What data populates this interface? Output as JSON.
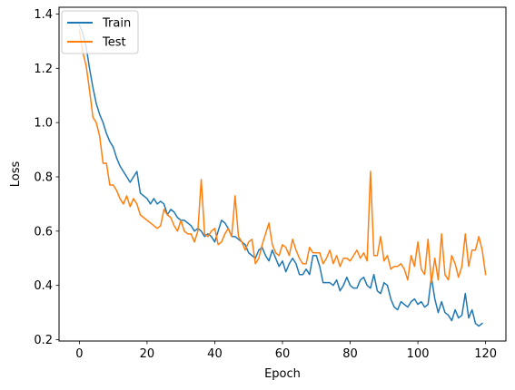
{
  "chart_data": {
    "type": "line",
    "title": "",
    "xlabel": "Epoch",
    "ylabel": "Loss",
    "xlim": [
      -6,
      126
    ],
    "ylim": [
      0.195,
      1.425
    ],
    "xticks": [
      0,
      20,
      40,
      60,
      80,
      100,
      120
    ],
    "yticks": [
      0.2,
      0.4,
      0.6,
      0.8,
      1.0,
      1.2,
      1.4
    ],
    "xtick_labels": [
      "0",
      "20",
      "40",
      "60",
      "80",
      "100",
      "120"
    ],
    "ytick_labels": [
      "0.2",
      "0.4",
      "0.6",
      "0.8",
      "1.0",
      "1.2",
      "1.4"
    ],
    "grid": false,
    "legend_position": "top-left",
    "x_start": 0,
    "series": [
      {
        "name": "Train",
        "color": "#1f77b4",
        "values": [
          1.36,
          1.33,
          1.28,
          1.2,
          1.13,
          1.07,
          1.03,
          1.0,
          0.96,
          0.93,
          0.91,
          0.87,
          0.84,
          0.82,
          0.8,
          0.78,
          0.8,
          0.82,
          0.74,
          0.73,
          0.72,
          0.7,
          0.72,
          0.7,
          0.71,
          0.7,
          0.66,
          0.68,
          0.67,
          0.65,
          0.64,
          0.64,
          0.63,
          0.62,
          0.6,
          0.61,
          0.6,
          0.58,
          0.59,
          0.58,
          0.56,
          0.6,
          0.64,
          0.63,
          0.61,
          0.58,
          0.58,
          0.57,
          0.56,
          0.55,
          0.52,
          0.51,
          0.5,
          0.53,
          0.54,
          0.51,
          0.49,
          0.53,
          0.5,
          0.47,
          0.49,
          0.45,
          0.48,
          0.5,
          0.48,
          0.44,
          0.44,
          0.46,
          0.44,
          0.51,
          0.51,
          0.47,
          0.41,
          0.41,
          0.41,
          0.4,
          0.42,
          0.38,
          0.4,
          0.43,
          0.4,
          0.39,
          0.39,
          0.42,
          0.43,
          0.4,
          0.39,
          0.44,
          0.38,
          0.37,
          0.41,
          0.4,
          0.35,
          0.32,
          0.31,
          0.34,
          0.33,
          0.32,
          0.34,
          0.35,
          0.33,
          0.34,
          0.32,
          0.33,
          0.43,
          0.35,
          0.3,
          0.34,
          0.3,
          0.29,
          0.27,
          0.31,
          0.28,
          0.29,
          0.37,
          0.28,
          0.31,
          0.26,
          0.25,
          0.26
        ]
      },
      {
        "name": "Test",
        "color": "#ff7f0e",
        "values": [
          1.34,
          1.26,
          1.21,
          1.12,
          1.02,
          1.0,
          0.95,
          0.85,
          0.85,
          0.77,
          0.77,
          0.75,
          0.72,
          0.7,
          0.73,
          0.69,
          0.72,
          0.7,
          0.66,
          0.65,
          0.64,
          0.63,
          0.62,
          0.61,
          0.62,
          0.68,
          0.66,
          0.65,
          0.62,
          0.6,
          0.64,
          0.6,
          0.59,
          0.59,
          0.56,
          0.6,
          0.79,
          0.59,
          0.58,
          0.6,
          0.61,
          0.55,
          0.56,
          0.59,
          0.61,
          0.58,
          0.73,
          0.58,
          0.56,
          0.53,
          0.56,
          0.57,
          0.48,
          0.5,
          0.55,
          0.59,
          0.63,
          0.55,
          0.52,
          0.51,
          0.55,
          0.54,
          0.51,
          0.57,
          0.53,
          0.5,
          0.48,
          0.48,
          0.54,
          0.52,
          0.52,
          0.52,
          0.48,
          0.5,
          0.53,
          0.48,
          0.51,
          0.47,
          0.5,
          0.5,
          0.49,
          0.51,
          0.53,
          0.5,
          0.52,
          0.49,
          0.82,
          0.51,
          0.51,
          0.58,
          0.49,
          0.51,
          0.46,
          0.47,
          0.47,
          0.48,
          0.46,
          0.42,
          0.51,
          0.47,
          0.56,
          0.46,
          0.44,
          0.57,
          0.41,
          0.5,
          0.42,
          0.59,
          0.44,
          0.42,
          0.51,
          0.48,
          0.43,
          0.47,
          0.59,
          0.47,
          0.53,
          0.53,
          0.58,
          0.53,
          0.44
        ]
      }
    ]
  }
}
